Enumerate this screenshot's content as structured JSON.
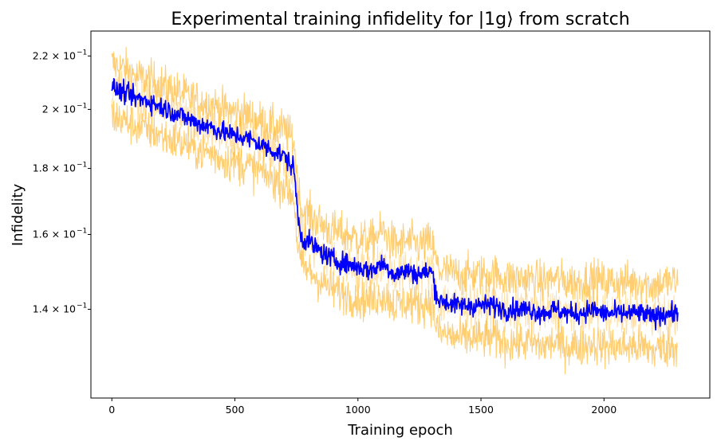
{
  "chart_data": {
    "type": "line",
    "title": "Experimental training infidelity for |1g⟩ from scratch",
    "xlabel": "Training epoch",
    "ylabel": "Infidelity",
    "yscale": "log",
    "xlim": [
      -85,
      2430
    ],
    "ylim": [
      0.1195,
      0.23
    ],
    "xticks": [
      0,
      500,
      1000,
      1500,
      2000
    ],
    "yticks": [
      {
        "value": 0.22,
        "mantissa": "2.2",
        "base": "× 10",
        "exp": "−1"
      },
      {
        "value": 0.2,
        "mantissa": "2",
        "base": "× 10",
        "exp": "−1"
      },
      {
        "value": 0.18,
        "mantissa": "1.8",
        "base": "× 10",
        "exp": "−1"
      },
      {
        "value": 0.16,
        "mantissa": "1.6",
        "base": "× 10",
        "exp": "−1"
      },
      {
        "value": 0.14,
        "mantissa": "1.4",
        "base": "× 10",
        "exp": "−1"
      }
    ],
    "grid": false,
    "legend": "none",
    "colors": {
      "mean": "#0000ff",
      "band": "#ffa500"
    },
    "series": [
      {
        "role": "mean",
        "x": [
          0,
          50,
          100,
          150,
          200,
          250,
          300,
          350,
          400,
          450,
          500,
          550,
          600,
          650,
          700,
          740,
          755,
          770,
          800,
          850,
          900,
          950,
          1000,
          1050,
          1100,
          1150,
          1200,
          1250,
          1300,
          1315,
          1330,
          1350,
          1400,
          1450,
          1500,
          1550,
          1600,
          1650,
          1700,
          1750,
          1800,
          1850,
          1900,
          1950,
          2000,
          2050,
          2100,
          2150,
          2200,
          2250,
          2300
        ],
        "y": [
          0.208,
          0.206,
          0.204,
          0.203,
          0.201,
          0.199,
          0.197,
          0.195,
          0.194,
          0.192,
          0.191,
          0.19,
          0.188,
          0.186,
          0.184,
          0.18,
          0.166,
          0.159,
          0.158,
          0.155,
          0.153,
          0.152,
          0.151,
          0.15,
          0.152,
          0.149,
          0.15,
          0.149,
          0.15,
          0.145,
          0.142,
          0.142,
          0.141,
          0.141,
          0.141,
          0.141,
          0.14,
          0.14,
          0.14,
          0.139,
          0.14,
          0.139,
          0.139,
          0.14,
          0.139,
          0.139,
          0.139,
          0.139,
          0.138,
          0.139,
          0.139
        ]
      },
      {
        "role": "band-upper",
        "y": [
          0.217,
          0.215,
          0.212,
          0.211,
          0.209,
          0.207,
          0.205,
          0.203,
          0.202,
          0.2,
          0.199,
          0.198,
          0.196,
          0.194,
          0.193,
          0.189,
          0.175,
          0.167,
          0.166,
          0.163,
          0.161,
          0.16,
          0.159,
          0.158,
          0.161,
          0.157,
          0.158,
          0.157,
          0.158,
          0.153,
          0.15,
          0.15,
          0.149,
          0.149,
          0.149,
          0.149,
          0.148,
          0.148,
          0.148,
          0.147,
          0.148,
          0.147,
          0.147,
          0.148,
          0.147,
          0.147,
          0.147,
          0.147,
          0.146,
          0.147,
          0.147
        ]
      },
      {
        "role": "band-lower",
        "y": [
          0.198,
          0.196,
          0.194,
          0.193,
          0.191,
          0.189,
          0.188,
          0.186,
          0.185,
          0.183,
          0.182,
          0.181,
          0.179,
          0.177,
          0.175,
          0.171,
          0.157,
          0.151,
          0.15,
          0.147,
          0.145,
          0.144,
          0.143,
          0.142,
          0.144,
          0.141,
          0.142,
          0.141,
          0.142,
          0.137,
          0.134,
          0.134,
          0.133,
          0.133,
          0.133,
          0.133,
          0.132,
          0.132,
          0.132,
          0.131,
          0.132,
          0.131,
          0.131,
          0.132,
          0.131,
          0.131,
          0.131,
          0.131,
          0.13,
          0.131,
          0.131
        ]
      }
    ]
  }
}
